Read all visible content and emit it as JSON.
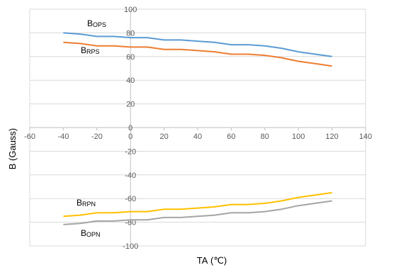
{
  "chart_data": {
    "type": "line",
    "title": "",
    "xlabel": "TA (℃)",
    "ylabel": "B (Gauss)",
    "xlim": [
      -60,
      140
    ],
    "ylim": [
      -100,
      100
    ],
    "x_ticks": [
      -60,
      -40,
      -20,
      0,
      20,
      40,
      60,
      80,
      100,
      120,
      140
    ],
    "y_ticks": [
      -100,
      -80,
      -60,
      -40,
      -20,
      0,
      20,
      40,
      60,
      80,
      100
    ],
    "grid": true,
    "legend": "none",
    "series": [
      {
        "name": "BOPS",
        "label_main": "B",
        "label_sub": "OPS",
        "color": "#5B9BD5",
        "x": [
          -40,
          -30,
          -20,
          -10,
          0,
          10,
          20,
          30,
          40,
          50,
          60,
          70,
          80,
          90,
          100,
          110,
          120
        ],
        "y": [
          80,
          79,
          77,
          77,
          76,
          76,
          74,
          74,
          73,
          72,
          70,
          70,
          69,
          67,
          64,
          62,
          60
        ]
      },
      {
        "name": "BRPS",
        "label_main": "B",
        "label_sub": "RPS",
        "color": "#ED7D31",
        "x": [
          -40,
          -30,
          -20,
          -10,
          0,
          10,
          20,
          30,
          40,
          50,
          60,
          70,
          80,
          90,
          100,
          110,
          120
        ],
        "y": [
          72,
          71,
          69,
          69,
          68,
          68,
          66,
          66,
          65,
          64,
          62,
          62,
          61,
          59,
          56,
          54,
          52
        ]
      },
      {
        "name": "BRPN",
        "label_main": "B",
        "label_sub": "RPN",
        "color": "#FFC000",
        "x": [
          -40,
          -30,
          -20,
          -10,
          0,
          10,
          20,
          30,
          40,
          50,
          60,
          70,
          80,
          90,
          100,
          110,
          120
        ],
        "y": [
          -75,
          -74,
          -72,
          -72,
          -71,
          -71,
          -69,
          -69,
          -68,
          -67,
          -65,
          -65,
          -64,
          -62,
          -59,
          -57,
          -55
        ]
      },
      {
        "name": "BOPN",
        "label_main": "B",
        "label_sub": "OPN",
        "color": "#A5A5A5",
        "x": [
          -40,
          -30,
          -20,
          -10,
          0,
          10,
          20,
          30,
          40,
          50,
          60,
          70,
          80,
          90,
          100,
          110,
          120
        ],
        "y": [
          -82,
          -81,
          -79,
          -79,
          -78,
          -78,
          -76,
          -76,
          -75,
          -74,
          -72,
          -72,
          -71,
          -69,
          -66,
          -64,
          -62
        ]
      }
    ]
  }
}
